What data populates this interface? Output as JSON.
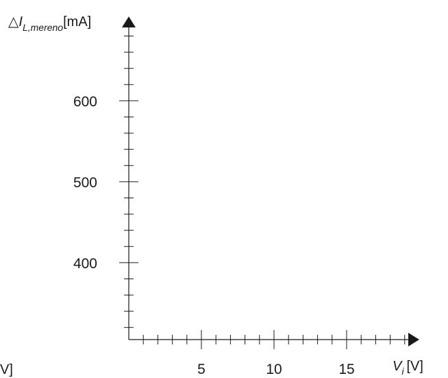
{
  "chart_data": {
    "type": "line",
    "title": "",
    "x_axis": {
      "label_symbol": "V",
      "label_subscript": "i",
      "label_unit": "[V]",
      "left_edge_fragment": "V]",
      "range": [
        0,
        19
      ],
      "major_ticks": [
        5,
        10,
        15
      ],
      "tick_labels": [
        "5",
        "10",
        "15"
      ],
      "minor_tick_step": 1
    },
    "y_axis": {
      "label_prefix": "△",
      "label_symbol": "I",
      "label_subscript": "L,mereno",
      "label_unit": "[mA]",
      "range": [
        305,
        690
      ],
      "major_ticks": [
        400,
        500,
        600
      ],
      "tick_labels": [
        "400",
        "500",
        "600"
      ],
      "minor_tick_step": 20
    },
    "series": [],
    "grid": false,
    "legend": "none"
  }
}
